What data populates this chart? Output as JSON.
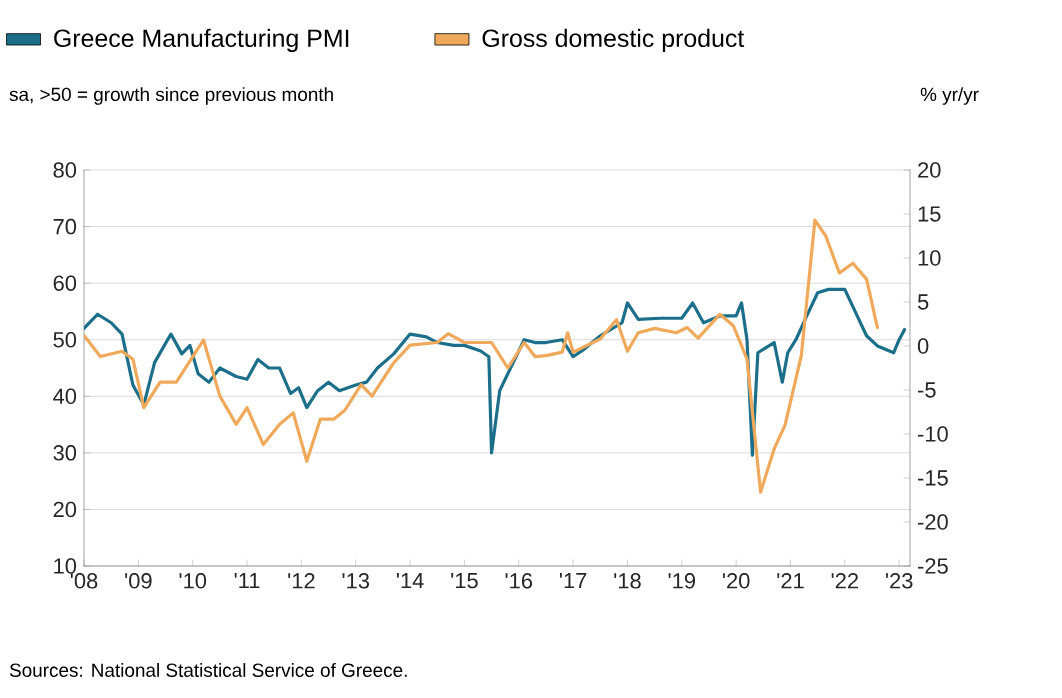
{
  "chart_data": {
    "type": "line",
    "ylabel": "sa, >50 = growth since previous month",
    "y2label": "% yr/yr",
    "annotations": [
      "Sources: National Statistical Service of Greece."
    ],
    "xlim": [
      2008,
      2023.2
    ],
    "xticks": [
      {
        "value": 2008,
        "label": "'08"
      },
      {
        "value": 2009,
        "label": "'09"
      },
      {
        "value": 2010,
        "label": "'10"
      },
      {
        "value": 2011,
        "label": "'11"
      },
      {
        "value": 2012,
        "label": "'12"
      },
      {
        "value": 2013,
        "label": "'13"
      },
      {
        "value": 2014,
        "label": "'14"
      },
      {
        "value": 2015,
        "label": "'15"
      },
      {
        "value": 2016,
        "label": "'16"
      },
      {
        "value": 2017,
        "label": "'17"
      },
      {
        "value": 2018,
        "label": "'18"
      },
      {
        "value": 2019,
        "label": "'19"
      },
      {
        "value": 2020,
        "label": "'20"
      },
      {
        "value": 2021,
        "label": "'21"
      },
      {
        "value": 2022,
        "label": "'22"
      },
      {
        "value": 2023,
        "label": "'23"
      }
    ],
    "ylim": [
      10,
      80
    ],
    "yticks": [
      10,
      20,
      30,
      40,
      50,
      60,
      70,
      80
    ],
    "y2lim": [
      -25,
      20
    ],
    "y2ticks": [
      -25,
      -20,
      -15,
      -10,
      -5,
      0,
      5,
      10,
      15,
      20
    ],
    "grid": "y",
    "legend": "top",
    "marker": "none",
    "line_style": "solid",
    "series": [
      {
        "name": "Greece Manufacturing PMI",
        "color": "#1b6f8a",
        "x": [
          2008.0,
          2008.25,
          2008.5,
          2008.7,
          2008.9,
          2009.1,
          2009.3,
          2009.6,
          2009.8,
          2009.95,
          2010.1,
          2010.3,
          2010.5,
          2010.8,
          2011.0,
          2011.2,
          2011.4,
          2011.6,
          2011.8,
          2011.95,
          2012.1,
          2012.3,
          2012.5,
          2012.7,
          2013.0,
          2013.2,
          2013.4,
          2013.7,
          2014.0,
          2014.3,
          2014.5,
          2014.8,
          2015.0,
          2015.3,
          2015.45,
          2015.5,
          2015.65,
          2015.9,
          2016.1,
          2016.3,
          2016.5,
          2016.8,
          2017.0,
          2017.2,
          2017.5,
          2017.9,
          2018.0,
          2018.2,
          2018.6,
          2019.0,
          2019.2,
          2019.4,
          2019.7,
          2020.0,
          2020.1,
          2020.2,
          2020.3,
          2020.4,
          2020.7,
          2020.85,
          2020.95,
          2021.1,
          2021.3,
          2021.5,
          2021.7,
          2022.0,
          2022.2,
          2022.4,
          2022.6,
          2022.9,
          2023.0,
          2023.1
        ],
        "values": [
          52,
          54.5,
          53,
          51,
          42,
          38.5,
          46,
          51,
          47.5,
          49,
          44,
          42.5,
          45,
          43.5,
          43,
          46.5,
          45,
          45,
          40.5,
          41.5,
          38,
          41,
          42.5,
          41,
          42,
          42.5,
          45,
          47.5,
          51,
          50.5,
          49.5,
          49,
          49,
          48,
          47,
          30,
          41,
          46,
          50,
          49.5,
          49.5,
          50,
          47,
          48.3,
          50.7,
          53,
          56.5,
          53.6,
          53.8,
          53.8,
          56.5,
          53,
          54.2,
          54.2,
          56.5,
          50,
          29.6,
          47.7,
          49.5,
          42.5,
          47.7,
          50,
          54.2,
          58.3,
          58.9,
          58.9,
          54.8,
          50.7,
          48.9,
          47.7,
          50,
          51.8
        ]
      },
      {
        "name": "Gross domestic product",
        "color": "#f0a95a",
        "axis": "y2",
        "x": [
          2008.0,
          2008.3,
          2008.7,
          2008.9,
          2009.1,
          2009.4,
          2009.7,
          2010.2,
          2010.5,
          2010.8,
          2011.0,
          2011.3,
          2011.6,
          2011.85,
          2012.1,
          2012.35,
          2012.6,
          2012.8,
          2013.1,
          2013.3,
          2013.7,
          2014.0,
          2014.5,
          2014.7,
          2015.0,
          2015.5,
          2015.8,
          2016.1,
          2016.3,
          2016.5,
          2016.8,
          2016.9,
          2017.0,
          2017.5,
          2017.8,
          2018.0,
          2018.2,
          2018.5,
          2018.9,
          2019.1,
          2019.3,
          2019.7,
          2019.95,
          2020.2,
          2020.45,
          2020.7,
          2020.9,
          2021.2,
          2021.45,
          2021.65,
          2021.9,
          2022.15,
          2022.4,
          2022.6
        ],
        "values": [
          1.2,
          -1.2,
          -0.6,
          -1.5,
          -7,
          -4.1,
          -4.1,
          0.7,
          -5.7,
          -8.9,
          -7,
          -11.2,
          -8.9,
          -7.6,
          -13.1,
          -8.3,
          -8.3,
          -7.3,
          -4.4,
          -5.7,
          -1.9,
          0.1,
          0.4,
          1.4,
          0.4,
          0.4,
          -2.5,
          0.4,
          -1.2,
          -1.1,
          -0.7,
          1.5,
          -0.7,
          0.8,
          3,
          -0.6,
          1.5,
          2,
          1.5,
          2.1,
          0.9,
          3.6,
          2.3,
          -1.5,
          -16.6,
          -11.7,
          -9,
          -1.1,
          14.3,
          12.5,
          8.3,
          9.4,
          7.6,
          2.1
        ]
      }
    ]
  }
}
